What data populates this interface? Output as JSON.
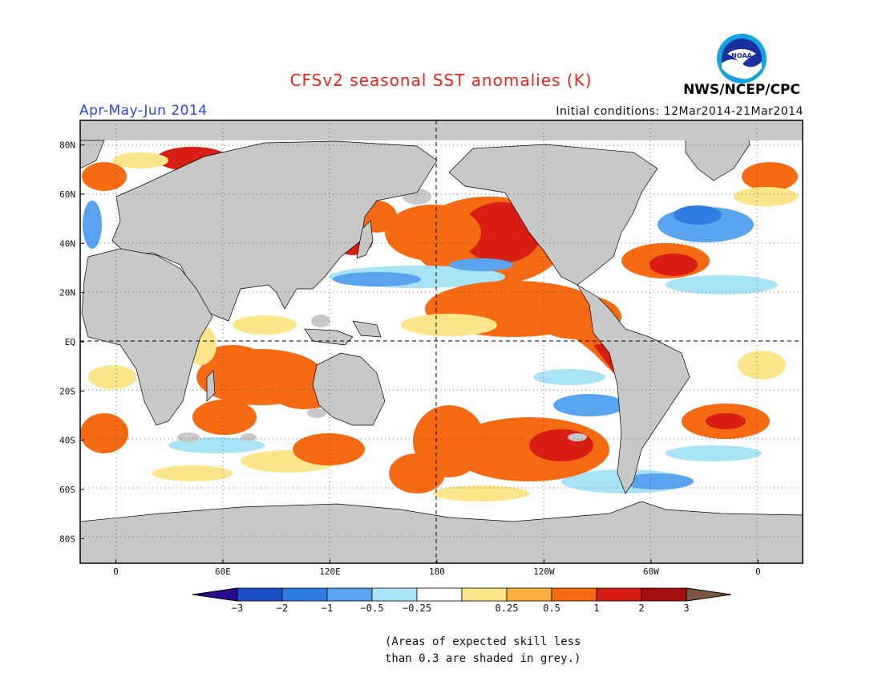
{
  "title": "CFSv2 seasonal SST anomalies (K)",
  "subtitle": "Apr-May-Jun 2014",
  "initial_conditions": "Initial conditions: 12Mar2014-21Mar2014",
  "agency": "NWS/NCEP/CPC",
  "logo_text": "NOAA",
  "note_line1": "(Areas of expected skill less",
  "note_line2": "than 0.3 are shaded in grey.)",
  "map": {
    "lat_labels": [
      "80N",
      "60N",
      "40N",
      "20N",
      "EQ",
      "20S",
      "40S",
      "60S",
      "80S"
    ],
    "lon_labels": [
      "0",
      "60E",
      "120E",
      "180",
      "120W",
      "60W",
      "0"
    ],
    "lat_values": [
      80,
      60,
      40,
      20,
      0,
      -20,
      -40,
      -60,
      -80
    ],
    "lon_values": [
      0,
      60,
      120,
      180,
      240,
      300,
      360
    ],
    "lon_range": [
      -20,
      385
    ],
    "lat_range": [
      -90,
      90
    ],
    "grid": "dotted",
    "reference_lines": [
      "equator",
      "dateline"
    ],
    "land_color": "#c8c8c8",
    "ocean_neutral_color": "#ffffff"
  },
  "colorbar": {
    "labels": [
      "−3",
      "−2",
      "−1",
      "−0.5",
      "−0.25",
      "0.25",
      "0.5",
      "1",
      "2",
      "3"
    ],
    "below_color": "#2b0a8f",
    "above_color": "#7a5540",
    "colors": [
      "#1a4fc4",
      "#2f7de0",
      "#5aa3ee",
      "#a9e4f6",
      "#ffffff",
      "#fde58a",
      "#fdb040",
      "#f56a12",
      "#d81e12",
      "#a50e0e"
    ]
  }
}
